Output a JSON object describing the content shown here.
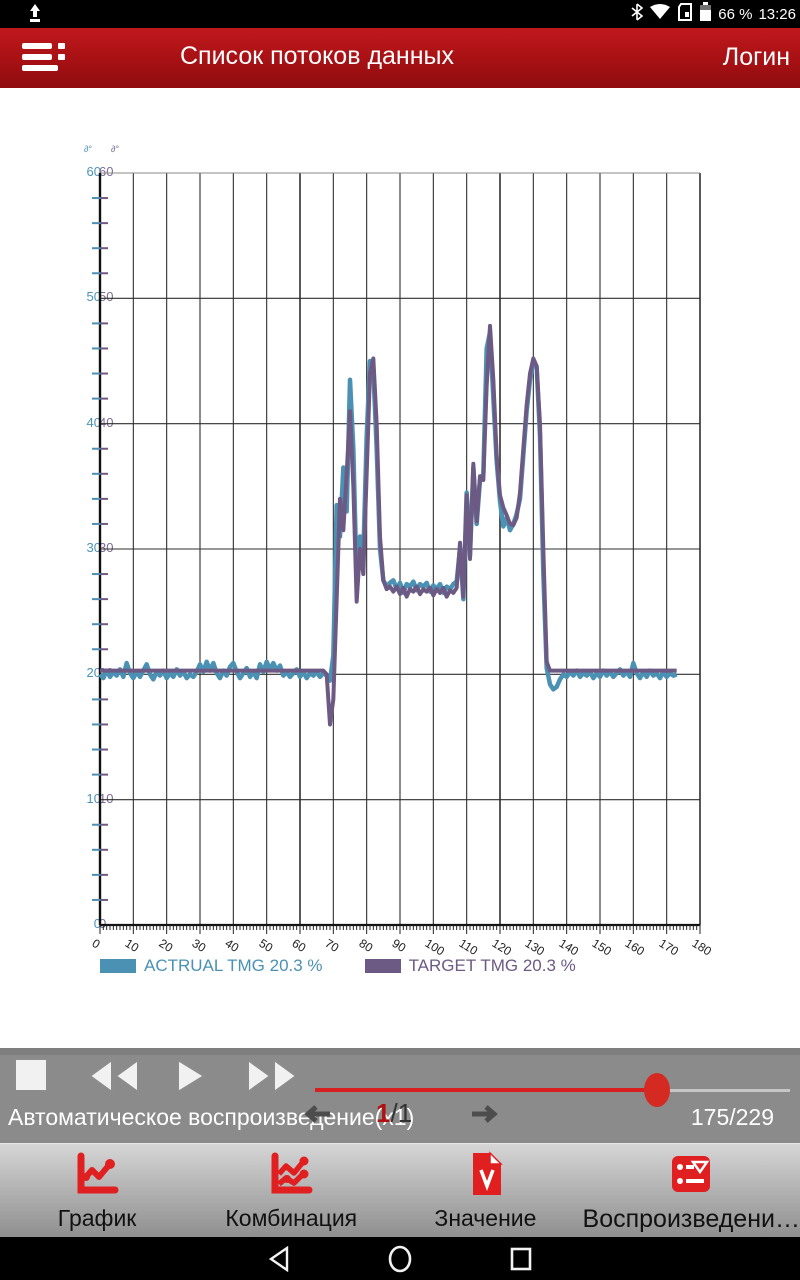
{
  "status_bar": {
    "time": "13:26",
    "battery_percent": "66 %",
    "icons": [
      "upload-icon",
      "bluetooth-icon",
      "wifi-icon",
      "sim-card-icon",
      "battery-icon"
    ]
  },
  "app_bar": {
    "title": "Список потоков данных",
    "action": "Логин",
    "accent": "#ab1215"
  },
  "chart_data": {
    "type": "line",
    "title": "",
    "xlabel": "",
    "ylabel": "",
    "xlim": [
      0,
      180
    ],
    "ylim": [
      0,
      60
    ],
    "x_start": 0,
    "x_step": 1,
    "grid": true,
    "x_tick_labels": [
      "0",
      "10",
      "20",
      "30",
      "40",
      "50",
      "60",
      "70",
      "80",
      "90",
      "100",
      "110",
      "120",
      "130",
      "140",
      "150",
      "160",
      "170",
      "180"
    ],
    "y_tick_labels": [
      "0",
      "10",
      "20",
      "30",
      "40",
      "50",
      "60"
    ],
    "dual_y_axis": true,
    "axis_unit_glyphs": [
      "∂°",
      "∂°"
    ],
    "legend_position": "bottom",
    "legend": [
      {
        "name": "ACTRUAL TMG 20.3 %",
        "color": "#4b91b4"
      },
      {
        "name": "TARGET TMG 20.3 %",
        "color": "#6d5a84"
      }
    ],
    "series": [
      {
        "name": "ACTRUAL TMG 20.3 %",
        "color": "#4b91b4",
        "values": [
          20.0,
          19.7,
          20.3,
          19.8,
          20.2,
          19.9,
          20.4,
          19.8,
          20.9,
          20.1,
          19.7,
          20.2,
          19.8,
          20.3,
          20.8,
          20.0,
          19.6,
          20.2,
          19.9,
          20.3,
          19.7,
          20.1,
          19.8,
          20.4,
          19.9,
          20.2,
          19.7,
          20.0,
          19.8,
          20.2,
          20.8,
          20.2,
          21.0,
          20.3,
          20.9,
          20.1,
          19.7,
          20.3,
          19.9,
          20.6,
          20.9,
          20.2,
          19.7,
          20.1,
          20.5,
          19.8,
          20.2,
          19.7,
          20.8,
          20.2,
          21.0,
          20.4,
          20.9,
          20.3,
          20.7,
          19.9,
          20.2,
          19.8,
          20.1,
          20.4,
          19.8,
          20.2,
          19.7,
          20.1,
          19.9,
          20.2,
          19.8,
          20.1,
          19.9,
          19.5,
          21.5,
          33.5,
          31.0,
          36.5,
          33.0,
          43.5,
          38.0,
          27.5,
          31.0,
          29.5,
          39.0,
          45.0,
          44.3,
          38.0,
          30.0,
          27.5,
          27.0,
          27.3,
          27.5,
          26.8,
          27.3,
          26.5,
          27.2,
          27.0,
          27.4,
          26.7,
          27.2,
          27.0,
          27.3,
          26.6,
          27.1,
          26.8,
          27.2,
          26.5,
          27.0,
          26.8,
          27.2,
          27.4,
          30.0,
          26.0,
          34.5,
          29.5,
          36.5,
          32.0,
          35.5,
          36.0,
          46.0,
          47.3,
          42.0,
          37.0,
          33.8,
          31.8,
          32.5,
          31.5,
          32.0,
          32.8,
          34.0,
          37.5,
          41.0,
          43.5,
          45.0,
          44.5,
          39.0,
          28.0,
          20.5,
          19.2,
          18.8,
          19.0,
          19.6,
          20.0,
          19.8,
          20.2,
          19.9,
          20.3,
          19.8,
          20.1,
          19.9,
          20.2,
          19.7,
          20.1,
          19.8,
          20.3,
          19.9,
          20.2,
          19.8,
          20.1,
          20.4,
          19.9,
          20.2,
          19.8,
          20.9,
          20.1,
          19.7,
          20.2,
          19.8,
          20.3,
          19.9,
          20.1,
          19.7,
          20.2,
          19.8,
          20.1,
          19.9,
          20.0
        ]
      },
      {
        "name": "TARGET TMG 20.3 %",
        "color": "#6d5a84",
        "values": [
          20.3,
          20.3,
          20.3,
          20.3,
          20.3,
          20.3,
          20.3,
          20.3,
          20.3,
          20.3,
          20.3,
          20.3,
          20.3,
          20.3,
          20.3,
          20.3,
          20.3,
          20.3,
          20.3,
          20.3,
          20.3,
          20.3,
          20.3,
          20.3,
          20.3,
          20.3,
          20.3,
          20.3,
          20.3,
          20.3,
          20.3,
          20.3,
          20.3,
          20.3,
          20.3,
          20.3,
          20.3,
          20.3,
          20.3,
          20.3,
          20.3,
          20.3,
          20.3,
          20.3,
          20.3,
          20.3,
          20.3,
          20.3,
          20.3,
          20.3,
          20.3,
          20.3,
          20.3,
          20.3,
          20.3,
          20.3,
          20.3,
          20.3,
          20.3,
          20.3,
          20.3,
          20.3,
          20.3,
          20.3,
          20.3,
          20.3,
          20.3,
          20.3,
          20.0,
          16.0,
          18.0,
          26.0,
          34.0,
          31.5,
          36.0,
          41.0,
          35.0,
          25.8,
          30.0,
          28.0,
          36.0,
          44.0,
          45.2,
          40.0,
          31.0,
          27.5,
          26.8,
          27.0,
          26.6,
          27.0,
          26.4,
          26.9,
          26.2,
          26.8,
          26.6,
          27.0,
          26.4,
          26.8,
          26.6,
          26.9,
          26.3,
          26.8,
          26.5,
          26.9,
          26.2,
          26.7,
          26.5,
          26.9,
          30.5,
          26.2,
          34.3,
          29.2,
          36.8,
          32.2,
          35.8,
          35.5,
          43.0,
          47.8,
          43.5,
          37.5,
          34.3,
          33.3,
          32.7,
          32.0,
          31.9,
          32.5,
          34.5,
          38.0,
          41.5,
          44.0,
          45.2,
          44.6,
          40.0,
          30.0,
          21.0,
          20.3,
          20.3,
          20.3,
          20.3,
          20.3,
          20.3,
          20.3,
          20.3,
          20.3,
          20.3,
          20.3,
          20.3,
          20.3,
          20.3,
          20.3,
          20.3,
          20.3,
          20.3,
          20.3,
          20.3,
          20.3,
          20.3,
          20.3,
          20.3,
          20.3,
          20.3,
          20.3,
          20.3,
          20.3,
          20.3,
          20.3,
          20.3,
          20.3,
          20.3,
          20.3,
          20.3,
          20.3,
          20.3,
          20.3
        ]
      }
    ]
  },
  "playback": {
    "auto_text": "Автоматическое воспроизведение(x1)",
    "page_current": "1",
    "page_rest": "/1",
    "counter": "175/229",
    "slider_percent": 72,
    "buttons": [
      "stop",
      "rewind",
      "play",
      "fast-forward"
    ]
  },
  "tab_bar": {
    "tabs": [
      {
        "label": "График",
        "icon": "line-chart-icon"
      },
      {
        "label": "Комбинация",
        "icon": "combo-chart-icon"
      },
      {
        "label": "Значение",
        "icon": "value-document-icon"
      },
      {
        "label": "Воспроизведени…",
        "icon": "playback-list-icon"
      }
    ],
    "icon_color": "#e02020"
  },
  "nav_bar": {
    "icons": [
      "back-icon",
      "home-icon",
      "recents-icon"
    ]
  }
}
